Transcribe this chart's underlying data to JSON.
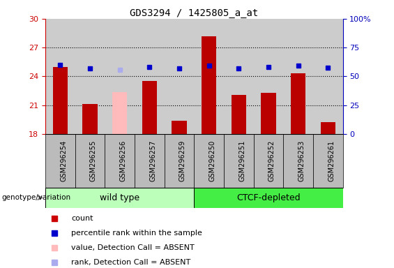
{
  "title": "GDS3294 / 1425805_a_at",
  "samples": [
    "GSM296254",
    "GSM296255",
    "GSM296256",
    "GSM296257",
    "GSM296259",
    "GSM296250",
    "GSM296251",
    "GSM296252",
    "GSM296253",
    "GSM296261"
  ],
  "bar_values": [
    25.0,
    21.1,
    22.35,
    23.5,
    19.35,
    28.2,
    22.1,
    22.3,
    24.3,
    19.2
  ],
  "bar_colors": [
    "#bb0000",
    "#bb0000",
    "#ffbbbb",
    "#bb0000",
    "#bb0000",
    "#bb0000",
    "#bb0000",
    "#bb0000",
    "#bb0000",
    "#bb0000"
  ],
  "dot_values_left": [
    25.2,
    24.8,
    24.7,
    25.0,
    24.8,
    25.15,
    24.8,
    25.0,
    25.1,
    24.9
  ],
  "dot_colors": [
    "#0000cc",
    "#0000cc",
    "#aaaaee",
    "#0000cc",
    "#0000cc",
    "#0000cc",
    "#0000cc",
    "#0000cc",
    "#0000cc",
    "#0000cc"
  ],
  "ylim_left": [
    18,
    30
  ],
  "yticks_left": [
    18,
    21,
    24,
    27,
    30
  ],
  "ylim_right": [
    0,
    100
  ],
  "yticks_right": [
    0,
    25,
    50,
    75,
    100
  ],
  "group1_label": "wild type",
  "group2_label": "CTCF-depleted",
  "n_group1": 5,
  "n_group2": 5,
  "group1_color": "#bbffbb",
  "group2_color": "#44ee44",
  "bar_width": 0.5,
  "plot_bg_color": "#cccccc",
  "legend_items": [
    {
      "label": "count",
      "color": "#cc0000"
    },
    {
      "label": "percentile rank within the sample",
      "color": "#0000cc"
    },
    {
      "label": "value, Detection Call = ABSENT",
      "color": "#ffbbbb"
    },
    {
      "label": "rank, Detection Call = ABSENT",
      "color": "#aaaaee"
    }
  ],
  "genotype_label": "genotype/variation",
  "gridlines": [
    27,
    24,
    21
  ],
  "left_axis_color": "#cc0000",
  "right_axis_color": "#0000bb",
  "tick_label_area_color": "#bbbbbb"
}
